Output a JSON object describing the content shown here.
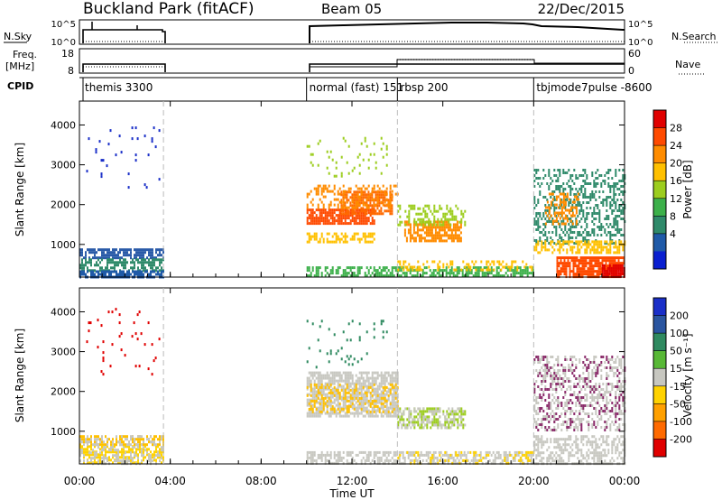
{
  "header": {
    "title": "Buckland Park (fitACF)",
    "beam": "Beam 05",
    "date": "22/Dec/2015"
  },
  "top_panels": {
    "nsky_label": "N.Sky",
    "nsky_ticks": [
      "10^5",
      "10^0"
    ],
    "nsearch_label": "N.Search",
    "nsearch_ticks": [
      "10^5",
      "10^0"
    ],
    "freq_label": "Freq.",
    "freq_unit": "[MHz]",
    "freq_ticks": [
      "18",
      "8"
    ],
    "nave_label": "Nave",
    "nave_ticks": [
      "60",
      "0"
    ],
    "cpid_label": "CPID",
    "cpid_modes": [
      {
        "label": "themis 3300",
        "start_h": 0.0
      },
      {
        "label": "normal (fast) 151",
        "start_h": 10.0
      },
      {
        "label": "rbsp 200",
        "start_h": 14.0
      },
      {
        "label": "tbjmode7pulse -8600",
        "start_h": 20.0
      }
    ]
  },
  "colorbars": {
    "power": {
      "label": "Power [dB]",
      "ticks": [
        "28",
        "24",
        "20",
        "16",
        "12",
        "8",
        "4"
      ],
      "colors": [
        "#e00000",
        "#ff4a00",
        "#ff8c00",
        "#ffc000",
        "#9ccd1e",
        "#3cb04a",
        "#2f8a6a",
        "#1f5aa8",
        "#0a1fd0"
      ]
    },
    "velocity": {
      "label": "Velocity [m s⁻¹]",
      "ticks": [
        "200",
        "100",
        "50",
        "15",
        "-15",
        "-50",
        "-100",
        "-200"
      ],
      "colors": [
        "#1a2fc8",
        "#2a55a0",
        "#2f8a60",
        "#58b836",
        "#c7c7c0",
        "#ffd200",
        "#ffa000",
        "#ff6a00",
        "#e00000"
      ]
    }
  },
  "chart_data": [
    {
      "type": "heatmap",
      "panel": "power",
      "ylabel": "Slant Range [km]",
      "yticks": [
        1000,
        2000,
        3000,
        4000
      ],
      "ylim": [
        180,
        4600
      ],
      "xlim_h": [
        0,
        24
      ],
      "regions": [
        {
          "t0": 0.0,
          "t1": 3.7,
          "r0": 650,
          "r1": 900,
          "color": "#2a5aa8",
          "density": 0.7
        },
        {
          "t0": 0.0,
          "t1": 3.7,
          "r0": 350,
          "r1": 650,
          "color": "#2f8a6a",
          "density": 0.6
        },
        {
          "t0": 0.0,
          "t1": 3.7,
          "r0": 200,
          "r1": 350,
          "color": "#1f5aa8",
          "density": 0.8
        },
        {
          "t0": 0.3,
          "t1": 3.5,
          "r0": 2400,
          "r1": 4100,
          "color": "#1a2fc8",
          "density": 0.025
        },
        {
          "t0": 10.0,
          "t1": 13.0,
          "r0": 1500,
          "r1": 1900,
          "color": "#ff4a00",
          "density": 0.85
        },
        {
          "t0": 11.5,
          "t1": 13.8,
          "r0": 1750,
          "r1": 2350,
          "color": "#ff6a00",
          "density": 0.75
        },
        {
          "t0": 10.0,
          "t1": 14.0,
          "r0": 1900,
          "r1": 2500,
          "color": "#ff8c00",
          "density": 0.35
        },
        {
          "t0": 10.0,
          "t1": 13.0,
          "r0": 1050,
          "r1": 1300,
          "color": "#ffc000",
          "density": 0.55
        },
        {
          "t0": 14.3,
          "t1": 16.8,
          "r0": 1100,
          "r1": 1600,
          "color": "#ff8c00",
          "density": 0.7
        },
        {
          "t0": 14.0,
          "t1": 17.0,
          "r0": 1500,
          "r1": 2000,
          "color": "#9ccd1e",
          "density": 0.35
        },
        {
          "t0": 10.0,
          "t1": 13.5,
          "r0": 2700,
          "r1": 3700,
          "color": "#9ccd1e",
          "density": 0.08
        },
        {
          "t0": 10.0,
          "t1": 20.0,
          "r0": 200,
          "r1": 450,
          "color": "#3cb04a",
          "density": 0.6
        },
        {
          "t0": 14.0,
          "t1": 20.0,
          "r0": 350,
          "r1": 600,
          "color": "#ffc000",
          "density": 0.35
        },
        {
          "t0": 20.0,
          "t1": 24.0,
          "r0": 1000,
          "r1": 2900,
          "color": "#2f8a6a",
          "density": 0.35
        },
        {
          "t0": 20.5,
          "t1": 22.0,
          "r0": 1500,
          "r1": 2300,
          "color": "#ff8c00",
          "density": 0.4
        },
        {
          "t0": 20.0,
          "t1": 24.0,
          "r0": 800,
          "r1": 1100,
          "color": "#ffc000",
          "density": 0.5
        },
        {
          "t0": 21.0,
          "t1": 24.0,
          "r0": 200,
          "r1": 700,
          "color": "#ff4a00",
          "density": 0.8
        },
        {
          "t0": 23.0,
          "t1": 24.0,
          "r0": 180,
          "r1": 500,
          "color": "#e00000",
          "density": 0.9
        }
      ]
    },
    {
      "type": "heatmap",
      "panel": "velocity",
      "ylabel": "Slant Range [km]",
      "yticks": [
        1000,
        2000,
        3000,
        4000
      ],
      "ylim": [
        180,
        4600
      ],
      "xlim_h": [
        0,
        24
      ],
      "regions": [
        {
          "t0": 0.0,
          "t1": 3.7,
          "r0": 650,
          "r1": 900,
          "color": "#ffc000",
          "density": 0.5
        },
        {
          "t0": 0.0,
          "t1": 3.7,
          "r0": 200,
          "r1": 650,
          "color": "#ffd200",
          "density": 0.6
        },
        {
          "t0": 0.0,
          "t1": 3.7,
          "r0": 200,
          "r1": 900,
          "color": "#c7c7c0",
          "density": 0.35
        },
        {
          "t0": 0.3,
          "t1": 3.5,
          "r0": 2400,
          "r1": 4100,
          "color": "#e00000",
          "density": 0.025
        },
        {
          "t0": 10.0,
          "t1": 14.0,
          "r0": 1400,
          "r1": 2500,
          "color": "#c7c7c0",
          "density": 0.75
        },
        {
          "t0": 10.0,
          "t1": 14.0,
          "r0": 1500,
          "r1": 2200,
          "color": "#ffc000",
          "density": 0.3
        },
        {
          "t0": 14.0,
          "t1": 17.0,
          "r0": 1100,
          "r1": 1600,
          "color": "#9ccd1e",
          "density": 0.45
        },
        {
          "t0": 14.0,
          "t1": 17.0,
          "r0": 1100,
          "r1": 1600,
          "color": "#c7c7c0",
          "density": 0.35
        },
        {
          "t0": 10.0,
          "t1": 20.0,
          "r0": 200,
          "r1": 500,
          "color": "#c7c7c0",
          "density": 0.55
        },
        {
          "t0": 14.0,
          "t1": 20.0,
          "r0": 200,
          "r1": 500,
          "color": "#ffd200",
          "density": 0.2
        },
        {
          "t0": 20.0,
          "t1": 24.0,
          "r0": 1000,
          "r1": 2900,
          "color": "#c7c7c0",
          "density": 0.35
        },
        {
          "t0": 20.0,
          "t1": 24.0,
          "r0": 1000,
          "r1": 2900,
          "color": "#8a2a6a",
          "density": 0.15
        },
        {
          "t0": 20.0,
          "t1": 24.0,
          "r0": 200,
          "r1": 900,
          "color": "#c7c7c0",
          "density": 0.5
        },
        {
          "t0": 10.0,
          "t1": 13.5,
          "r0": 2600,
          "r1": 3800,
          "color": "#2f8a60",
          "density": 0.06
        }
      ]
    }
  ],
  "x_axis": {
    "ticks": [
      "00:00",
      "04:00",
      "08:00",
      "12:00",
      "16:00",
      "20:00",
      "00:00"
    ],
    "label": "Time UT"
  }
}
